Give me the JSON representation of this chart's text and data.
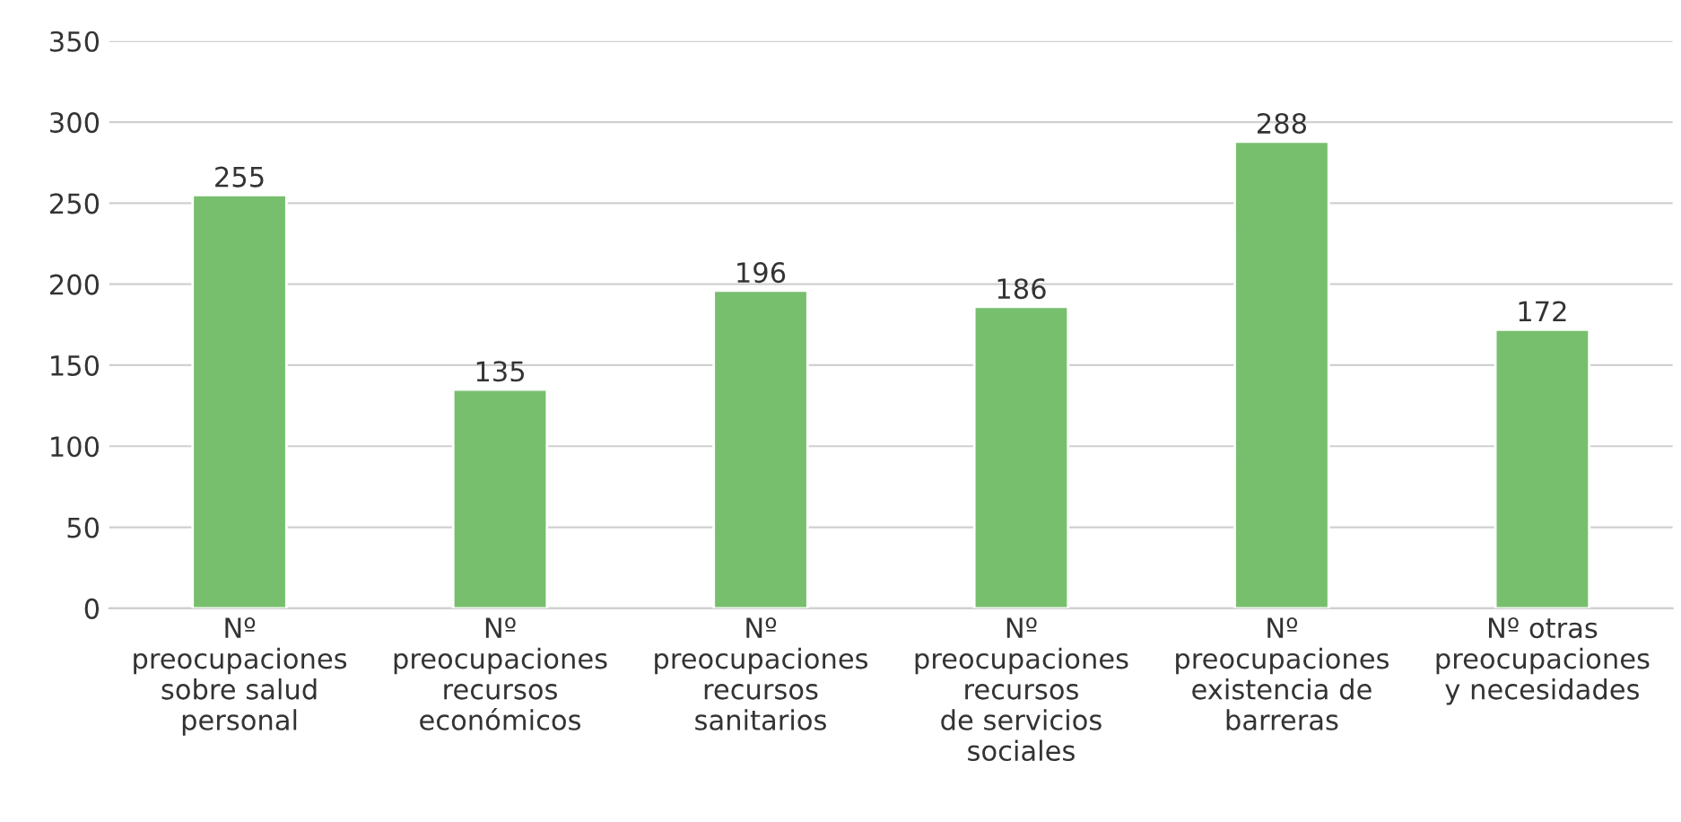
{
  "chart_data": {
    "type": "bar",
    "categories": [
      "Nº\npreocupaciones\nsobre salud\npersonal",
      "Nº\npreocupaciones\nrecursos\neconómicos",
      "Nº\npreocupaciones\nrecursos\nsanitarios",
      "Nº\npreocupaciones\nrecursos\nde servicios\nsociales",
      "Nº\npreocupaciones\nexistencia de\nbarreras",
      "Nº otras\npreocupaciones\ny necesidades"
    ],
    "values": [
      255,
      135,
      196,
      186,
      288,
      172
    ],
    "color": "#77bf6d",
    "ylim": [
      0,
      350
    ],
    "yticks": [
      0,
      50,
      100,
      150,
      200,
      250,
      300,
      350
    ],
    "grid": "y",
    "data_labels": true
  }
}
